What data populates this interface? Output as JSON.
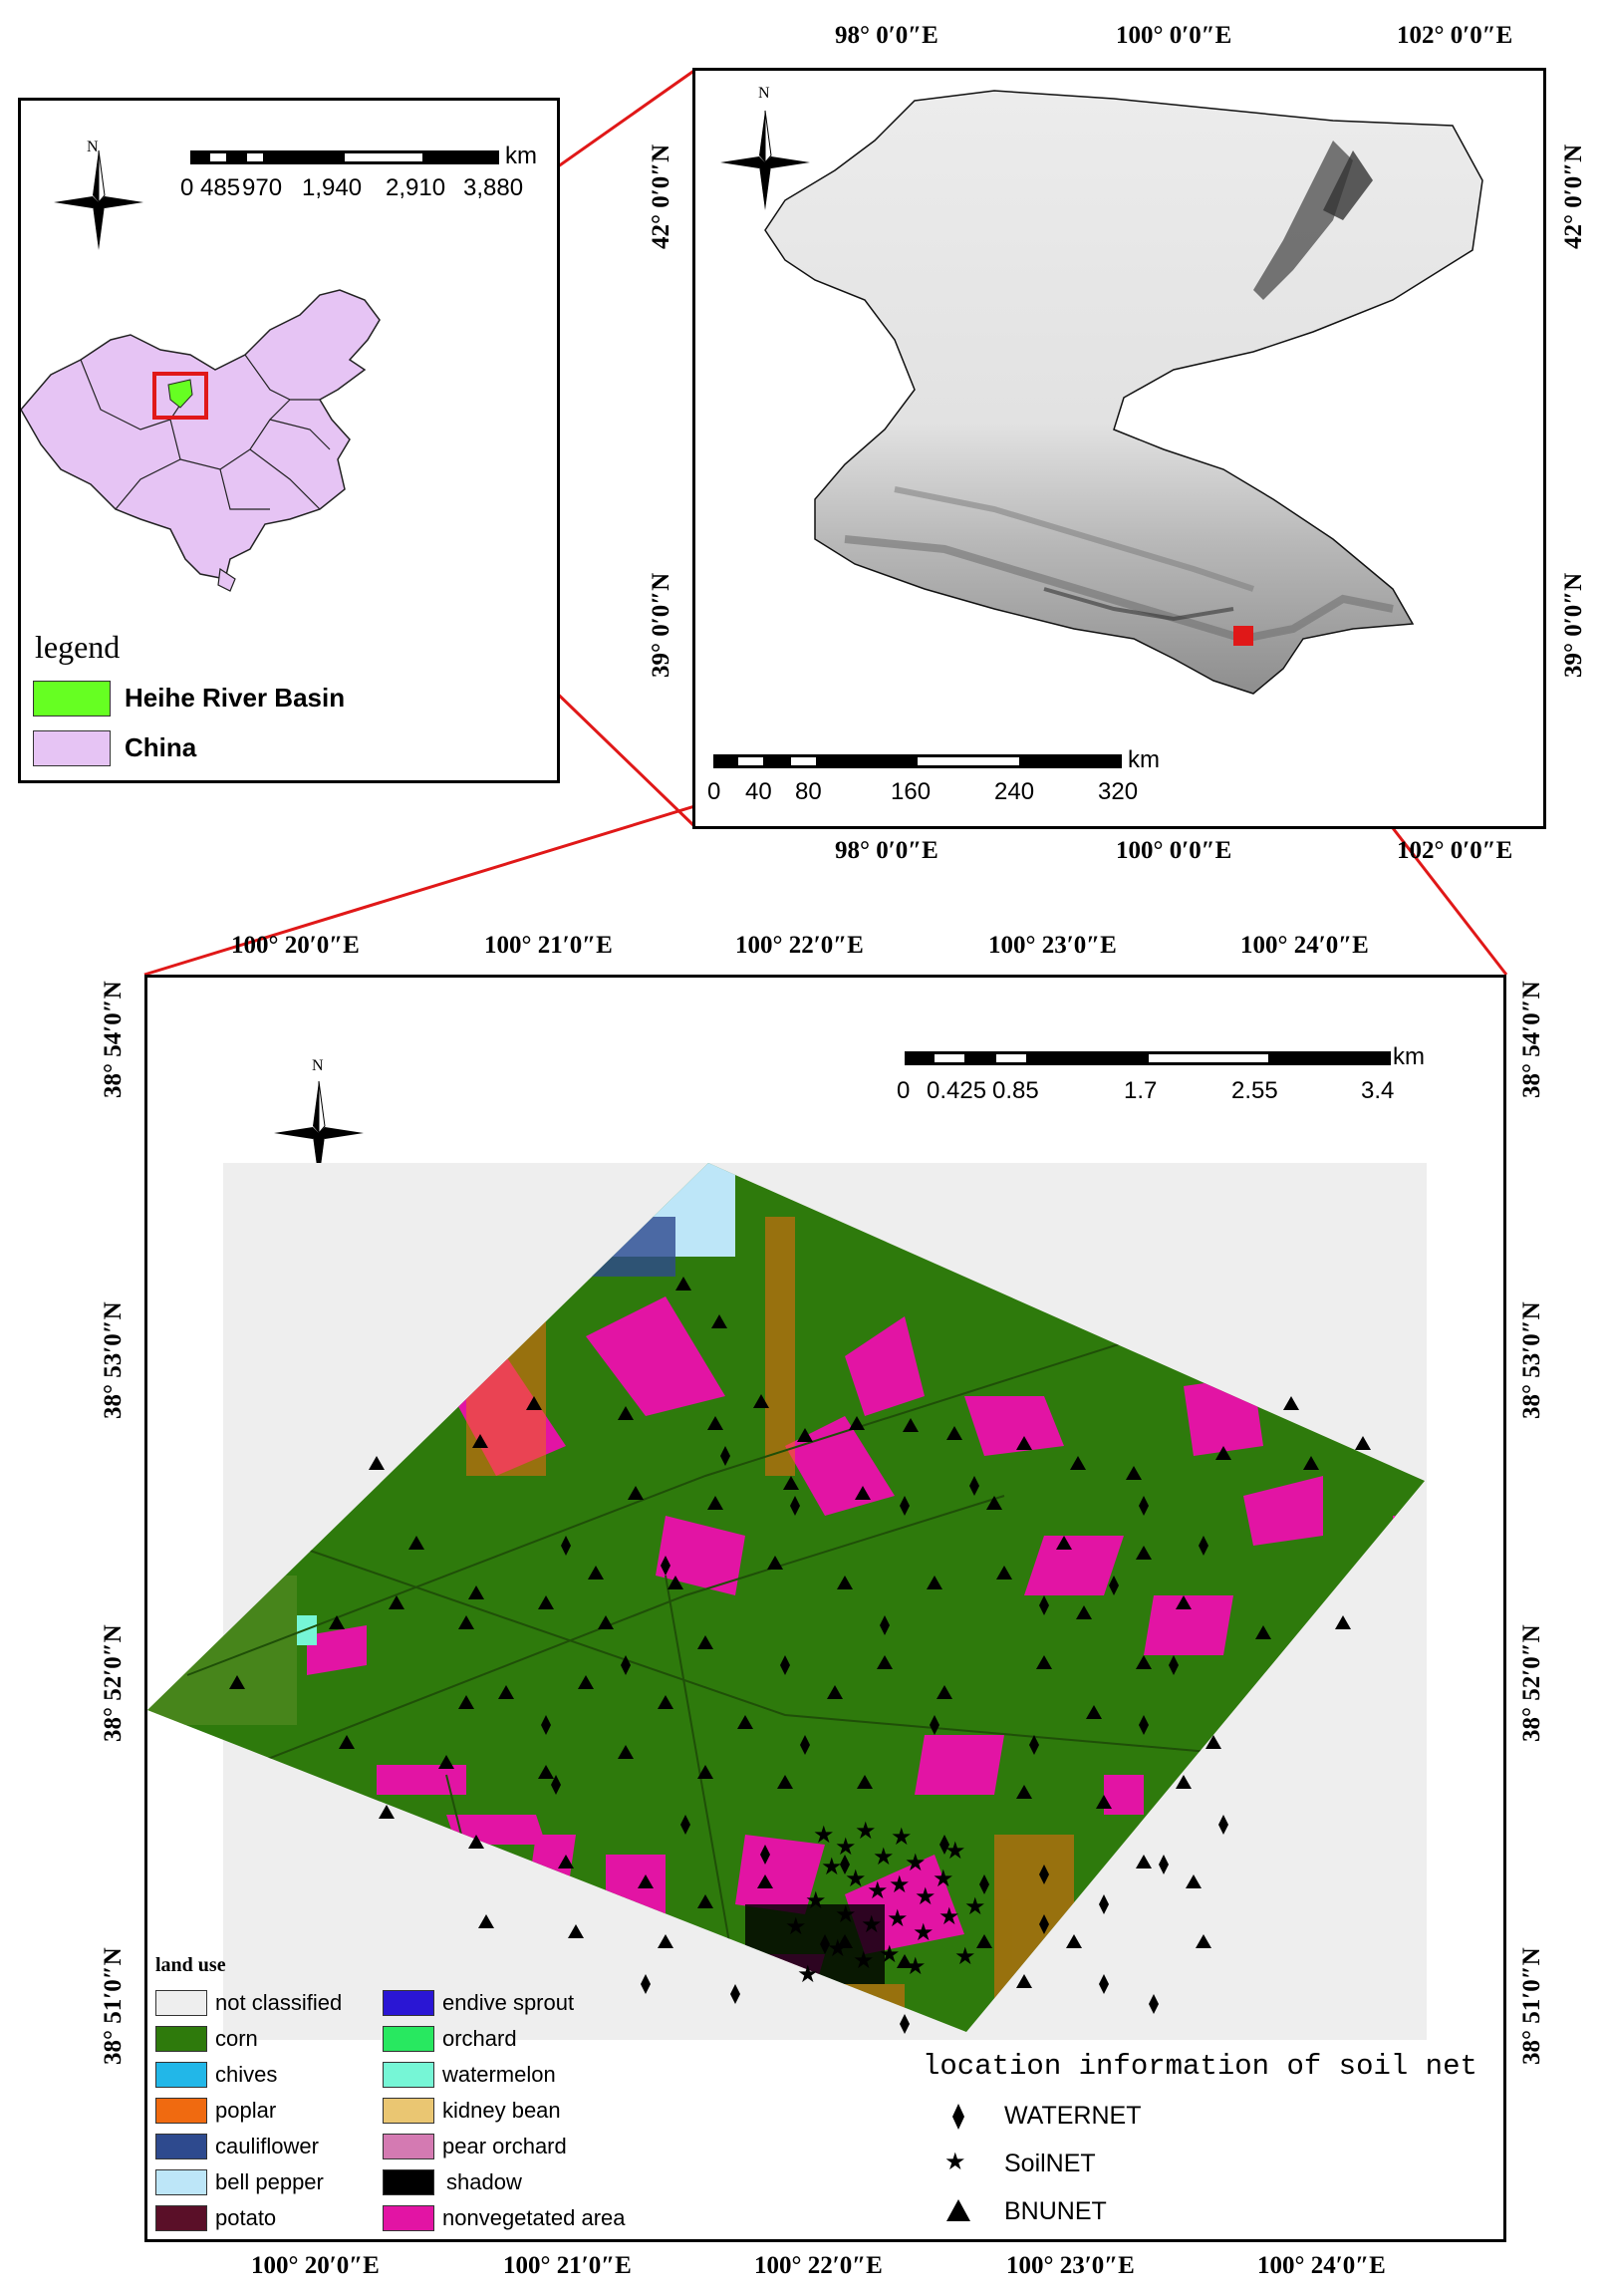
{
  "inset_china": {
    "north_label": "N",
    "scale_unit": "km",
    "scale_ticks": [
      "0",
      "485",
      "970",
      "1,940",
      "2,910",
      "3,880"
    ],
    "legend_title": "legend",
    "legend_items": [
      {
        "label": "Heihe River Basin",
        "color": "#66ff22"
      },
      {
        "label": "China",
        "color": "#e6c4f4"
      }
    ]
  },
  "basin_map": {
    "north_label": "N",
    "top_lon_labels": [
      "98° 0′0″E",
      "100° 0′0″E",
      "102° 0′0″E"
    ],
    "bottom_lon_labels": [
      "98° 0′0″E",
      "100° 0′0″E",
      "102° 0′0″E"
    ],
    "left_lat_labels": [
      "42° 0′0″N",
      "39° 0′0″N"
    ],
    "right_lat_labels": [
      "42° 0′0″N",
      "39° 0′0″N"
    ],
    "scale_unit": "km",
    "scale_ticks": [
      "0",
      "40",
      "80",
      "160",
      "240",
      "320"
    ]
  },
  "study_area_map": {
    "north_label": "N",
    "top_lon_labels": [
      "100° 20′0″E",
      "100° 21′0″E",
      "100° 22′0″E",
      "100° 23′0″E",
      "100° 24′0″E"
    ],
    "bottom_lon_labels": [
      "100° 20′0″E",
      "100° 21′0″E",
      "100° 22′0″E",
      "100° 23′0″E",
      "100° 24′0″E"
    ],
    "left_lat_labels": [
      "38° 54′0″N",
      "38° 53′0″N",
      "38° 52′0″N",
      "38° 51′0″N"
    ],
    "right_lat_labels": [
      "38° 54′0″N",
      "38° 53′0″N",
      "38° 52′0″N",
      "38° 51′0″N"
    ],
    "scale_unit": "km",
    "scale_ticks": [
      "0",
      "0.425",
      "0.85",
      "1.7",
      "2.55",
      "3.4"
    ],
    "landuse_title": "land use",
    "landuse_items": [
      {
        "label": "not classified",
        "color": "#eeeeee"
      },
      {
        "label": "corn",
        "color": "#2e7a0c"
      },
      {
        "label": "chives",
        "color": "#22b7e8"
      },
      {
        "label": "poplar",
        "color": "#f06a10"
      },
      {
        "label": "cauliflower",
        "color": "#2e4a8e"
      },
      {
        "label": "bell pepper",
        "color": "#bde6f8"
      },
      {
        "label": "potato",
        "color": "#5a0f28"
      },
      {
        "label": "endive sprout",
        "color": "#2a16d4"
      },
      {
        "label": "orchard",
        "color": "#28e860"
      },
      {
        "label": "watermelon",
        "color": "#76f6d6"
      },
      {
        "label": "kidney bean",
        "color": "#eac672"
      },
      {
        "label": "pear orchard",
        "color": "#d47ab2"
      },
      {
        "label": "shadow",
        "color": "#000000"
      },
      {
        "label": "nonvegetated area",
        "color": "#e214a4"
      }
    ],
    "soilnet_title": "location information of soil net",
    "soilnet_items": [
      {
        "label": "WATERNET",
        "symbol": "diamond"
      },
      {
        "label": "SoilNET",
        "symbol": "star"
      },
      {
        "label": "BNUNET",
        "symbol": "triangle"
      }
    ]
  }
}
